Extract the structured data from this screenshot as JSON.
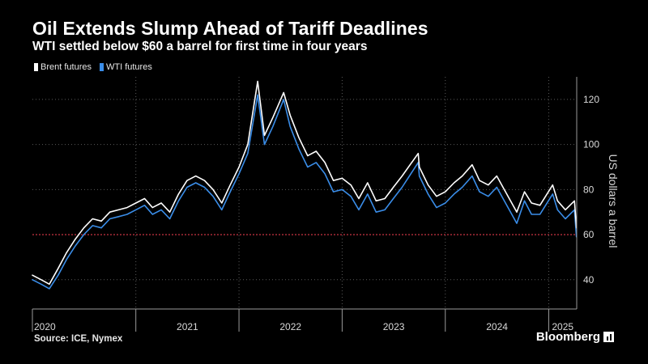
{
  "header": {
    "title": "Oil Extends Slump Ahead of Tariff Deadlines",
    "subtitle": "WTI settled below $60 a barrel for first time in four years"
  },
  "footer": {
    "source": "Source: ICE, Nymex",
    "brand": "Bloomberg"
  },
  "colors": {
    "background": "#000000",
    "brent": "#ffffff",
    "wti": "#3a8de8",
    "reference_line": "#e0394a",
    "grid": "#5a5a5a"
  },
  "chart_data": {
    "type": "line",
    "title": "Oil Extends Slump Ahead of Tariff Deadlines",
    "subtitle": "WTI settled below $60 a barrel for first time in four years",
    "ylabel": "US dollars a barrel",
    "xlabel": "",
    "ylim": [
      27,
      130
    ],
    "xlim": [
      "2020-01-01",
      "2025-04-10"
    ],
    "yticks": [
      40,
      60,
      80,
      100,
      120
    ],
    "xticks": [
      "2020",
      "2021",
      "2022",
      "2023",
      "2024",
      "2025"
    ],
    "reference_line": {
      "y": 60,
      "style": "dotted"
    },
    "grid": true,
    "legend_position": "top-left",
    "series": [
      {
        "name": "Brent futures",
        "color": "#ffffff",
        "x": [
          "2020-01-01",
          "2020-02-01",
          "2020-03-01",
          "2020-04-01",
          "2020-05-01",
          "2020-06-01",
          "2020-07-01",
          "2020-08-01",
          "2020-09-01",
          "2020-10-01",
          "2020-11-01",
          "2020-12-01",
          "2021-01-01",
          "2021-02-01",
          "2021-03-01",
          "2021-04-01",
          "2021-05-01",
          "2021-06-01",
          "2021-07-01",
          "2021-08-01",
          "2021-09-01",
          "2021-10-01",
          "2021-11-01",
          "2021-12-01",
          "2022-01-01",
          "2022-02-01",
          "2022-03-08",
          "2022-04-01",
          "2022-05-01",
          "2022-06-08",
          "2022-07-01",
          "2022-08-01",
          "2022-09-01",
          "2022-10-01",
          "2022-11-01",
          "2022-12-01",
          "2023-01-01",
          "2023-02-01",
          "2023-03-01",
          "2023-04-01",
          "2023-05-01",
          "2023-06-01",
          "2023-07-01",
          "2023-08-01",
          "2023-09-27",
          "2023-10-01",
          "2023-11-01",
          "2023-12-01",
          "2024-01-01",
          "2024-02-01",
          "2024-03-01",
          "2024-04-05",
          "2024-05-01",
          "2024-06-01",
          "2024-07-01",
          "2024-08-01",
          "2024-09-10",
          "2024-10-07",
          "2024-11-01",
          "2024-12-01",
          "2025-01-15",
          "2025-02-01",
          "2025-03-01",
          "2025-04-02",
          "2025-04-09"
        ],
        "values": [
          42,
          40,
          38,
          45,
          52,
          58,
          63,
          67,
          66,
          70,
          71,
          72,
          74,
          76,
          72,
          74,
          70,
          78,
          84,
          86,
          84,
          80,
          74,
          82,
          90,
          100,
          128,
          104,
          112,
          123,
          113,
          103,
          95,
          97,
          92,
          84,
          85,
          82,
          76,
          83,
          75,
          76,
          81,
          86,
          96,
          90,
          82,
          77,
          79,
          83,
          86,
          91,
          84,
          82,
          86,
          79,
          70,
          79,
          74,
          73,
          82,
          75,
          71,
          75,
          63
        ]
      },
      {
        "name": "WTI futures",
        "color": "#3a8de8",
        "x": [
          "2020-01-01",
          "2020-02-01",
          "2020-03-01",
          "2020-04-01",
          "2020-05-01",
          "2020-06-01",
          "2020-07-01",
          "2020-08-01",
          "2020-09-01",
          "2020-10-01",
          "2020-11-01",
          "2020-12-01",
          "2021-01-01",
          "2021-02-01",
          "2021-03-01",
          "2021-04-01",
          "2021-05-01",
          "2021-06-01",
          "2021-07-01",
          "2021-08-01",
          "2021-09-01",
          "2021-10-01",
          "2021-11-01",
          "2021-12-01",
          "2022-01-01",
          "2022-02-01",
          "2022-03-08",
          "2022-04-01",
          "2022-05-01",
          "2022-06-08",
          "2022-07-01",
          "2022-08-01",
          "2022-09-01",
          "2022-10-01",
          "2022-11-01",
          "2022-12-01",
          "2023-01-01",
          "2023-02-01",
          "2023-03-01",
          "2023-04-01",
          "2023-05-01",
          "2023-06-01",
          "2023-07-01",
          "2023-08-01",
          "2023-09-27",
          "2023-10-01",
          "2023-11-01",
          "2023-12-01",
          "2024-01-01",
          "2024-02-01",
          "2024-03-01",
          "2024-04-05",
          "2024-05-01",
          "2024-06-01",
          "2024-07-01",
          "2024-08-01",
          "2024-09-10",
          "2024-10-07",
          "2024-11-01",
          "2024-12-01",
          "2025-01-15",
          "2025-02-01",
          "2025-03-01",
          "2025-04-02",
          "2025-04-09"
        ],
        "values": [
          40,
          38,
          36,
          42,
          49,
          55,
          60,
          64,
          63,
          67,
          68,
          69,
          71,
          73,
          69,
          71,
          67,
          75,
          81,
          83,
          81,
          77,
          71,
          79,
          87,
          96,
          122,
          100,
          108,
          120,
          108,
          98,
          90,
          92,
          87,
          79,
          80,
          77,
          71,
          78,
          70,
          71,
          76,
          81,
          92,
          86,
          78,
          72,
          74,
          78,
          81,
          86,
          79,
          77,
          81,
          74,
          65,
          75,
          69,
          69,
          78,
          71,
          67,
          71,
          59
        ]
      }
    ]
  }
}
